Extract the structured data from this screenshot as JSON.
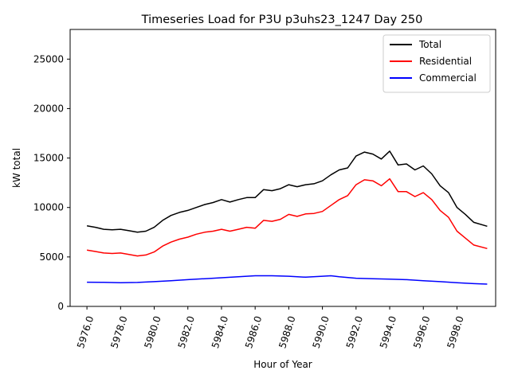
{
  "chart_data": {
    "type": "line",
    "title": "Timeseries Load for P3U p3uhs23_1247  Day 250",
    "xlabel": "Hour of Year",
    "ylabel": "kW total",
    "xlim": [
      5975.0,
      6000.3
    ],
    "ylim": [
      0,
      28000
    ],
    "xticks": [
      5976.0,
      5978.0,
      5980.0,
      5982.0,
      5984.0,
      5986.0,
      5988.0,
      5990.0,
      5992.0,
      5994.0,
      5996.0,
      5998.0
    ],
    "xtick_labels": [
      "5976.0",
      "5978.0",
      "5980.0",
      "5982.0",
      "5984.0",
      "5986.0",
      "5988.0",
      "5990.0",
      "5992.0",
      "5994.0",
      "5996.0",
      "5998.0"
    ],
    "yticks": [
      0,
      5000,
      10000,
      15000,
      20000,
      25000
    ],
    "ytick_labels": [
      "0",
      "5000",
      "10000",
      "15000",
      "20000",
      "25000"
    ],
    "grid": false,
    "legend_position": "top-right",
    "series": [
      {
        "name": "Total",
        "color": "#000000",
        "x": [
          5976.0,
          5976.5,
          5977.0,
          5977.5,
          5978.0,
          5978.5,
          5979.0,
          5979.5,
          5980.0,
          5980.5,
          5981.0,
          5981.5,
          5982.0,
          5982.5,
          5983.0,
          5983.5,
          5984.0,
          5984.5,
          5985.0,
          5985.5,
          5986.0,
          5986.5,
          5987.0,
          5987.5,
          5988.0,
          5988.5,
          5989.0,
          5989.5,
          5990.0,
          5990.5,
          5991.0,
          5991.5,
          5992.0,
          5992.5,
          5993.0,
          5993.5,
          5994.0,
          5994.5,
          5995.0,
          5995.5,
          5996.0,
          5996.5,
          5997.0,
          5997.5,
          5998.0,
          5998.5,
          5999.0,
          5999.8
        ],
        "values": [
          8150,
          8000,
          7800,
          7750,
          7800,
          7650,
          7500,
          7600,
          8000,
          8700,
          9200,
          9500,
          9700,
          10000,
          10300,
          10500,
          10800,
          10550,
          10800,
          11000,
          11000,
          11800,
          11700,
          11900,
          12300,
          12100,
          12300,
          12400,
          12700,
          13300,
          13800,
          14000,
          15200,
          15600,
          15400,
          14900,
          15700,
          14300,
          14400,
          13800,
          14200,
          13400,
          12200,
          11500,
          10000,
          9300,
          8500,
          8100
        ]
      },
      {
        "name": "Residential",
        "color": "#ff0000",
        "x": [
          5976.0,
          5976.5,
          5977.0,
          5977.5,
          5978.0,
          5978.5,
          5979.0,
          5979.5,
          5980.0,
          5980.5,
          5981.0,
          5981.5,
          5982.0,
          5982.5,
          5983.0,
          5983.5,
          5984.0,
          5984.5,
          5985.0,
          5985.5,
          5986.0,
          5986.5,
          5987.0,
          5987.5,
          5988.0,
          5988.5,
          5989.0,
          5989.5,
          5990.0,
          5990.5,
          5991.0,
          5991.5,
          5992.0,
          5992.5,
          5993.0,
          5993.5,
          5994.0,
          5994.5,
          5995.0,
          5995.5,
          5996.0,
          5996.5,
          5997.0,
          5997.5,
          5998.0,
          5998.5,
          5999.0,
          5999.8
        ],
        "values": [
          5700,
          5550,
          5400,
          5350,
          5400,
          5250,
          5100,
          5200,
          5500,
          6100,
          6500,
          6800,
          7000,
          7300,
          7500,
          7600,
          7800,
          7600,
          7800,
          8000,
          7900,
          8700,
          8600,
          8800,
          9300,
          9100,
          9350,
          9400,
          9600,
          10200,
          10800,
          11200,
          12300,
          12800,
          12700,
          12200,
          12900,
          11600,
          11600,
          11100,
          11500,
          10800,
          9700,
          9000,
          7600,
          6900,
          6200,
          5850
        ]
      },
      {
        "name": "Commercial",
        "color": "#0000ff",
        "x": [
          5976.0,
          5977.0,
          5978.0,
          5979.0,
          5980.0,
          5981.0,
          5982.0,
          5983.0,
          5984.0,
          5985.0,
          5986.0,
          5987.0,
          5988.0,
          5989.0,
          5990.0,
          5990.5,
          5991.0,
          5992.0,
          5993.0,
          5994.0,
          5995.0,
          5996.0,
          5997.0,
          5998.0,
          5999.0,
          5999.8
        ],
        "values": [
          2450,
          2430,
          2400,
          2420,
          2500,
          2600,
          2700,
          2800,
          2900,
          3000,
          3100,
          3100,
          3050,
          2950,
          3050,
          3100,
          3000,
          2850,
          2800,
          2750,
          2700,
          2600,
          2500,
          2400,
          2300,
          2250
        ]
      }
    ]
  }
}
